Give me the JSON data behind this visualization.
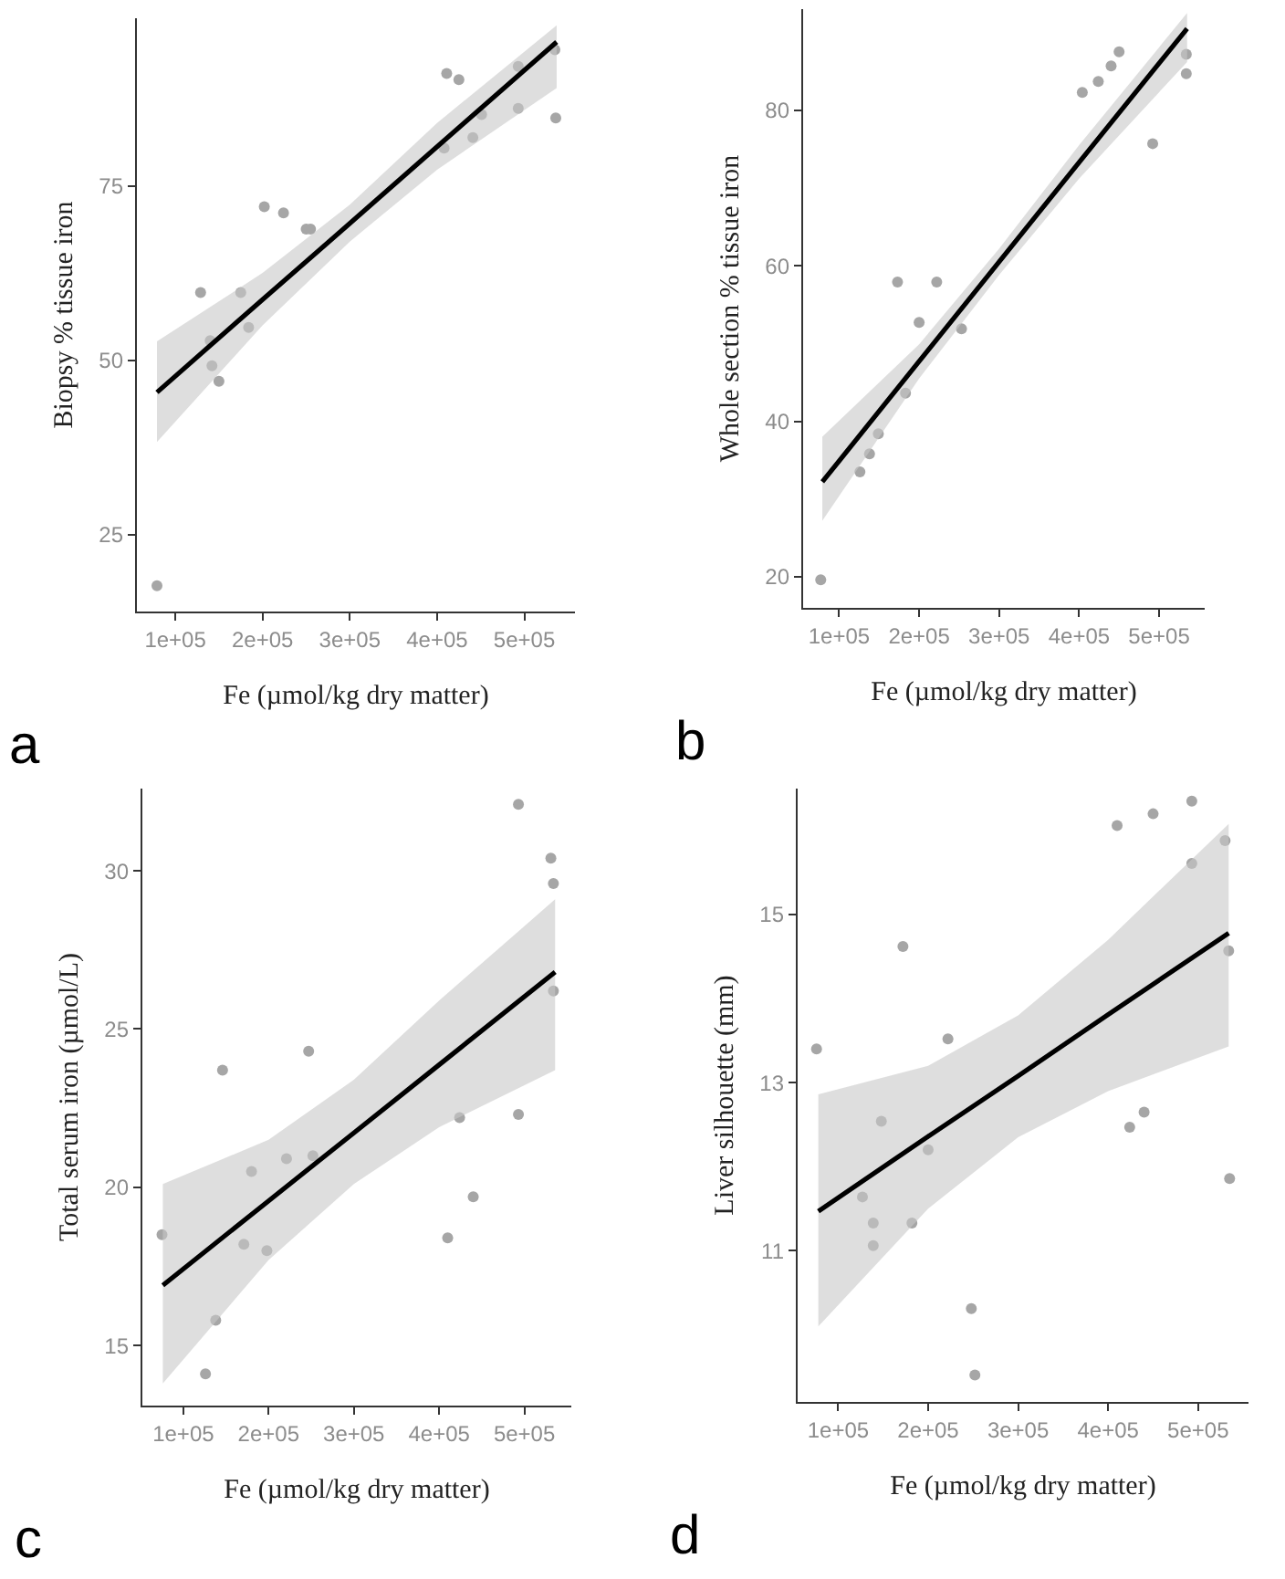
{
  "chart_data": [
    {
      "type": "scatter",
      "xlabel": "Fe (µmol/kg dry matter)",
      "ylabel": "Biopsy % tissue iron",
      "annotations": [
        "a"
      ],
      "xlim": [
        56000,
        558000
      ],
      "ylim": [
        14,
        99
      ],
      "xticks": [
        {
          "value": 100000,
          "label": "1e+05"
        },
        {
          "value": 200000,
          "label": "2e+05"
        },
        {
          "value": 300000,
          "label": "3e+05"
        },
        {
          "value": 400000,
          "label": "4e+05"
        },
        {
          "value": 500000,
          "label": "5e+05"
        }
      ],
      "yticks": [
        25,
        50,
        75
      ],
      "series": [
        {
          "marker": "circle",
          "color": "#a6a6a6",
          "x": [
            79000,
            129000,
            140000,
            142000,
            150000,
            175000,
            184000,
            202000,
            224000,
            250000,
            255000,
            408000,
            411000,
            425000,
            441000,
            451000,
            493000,
            493000,
            535000,
            536000
          ],
          "values": [
            17.7,
            59.7,
            52.8,
            49.2,
            47.0,
            59.7,
            54.7,
            72.0,
            71.1,
            68.8,
            68.8,
            80.4,
            91.1,
            90.2,
            81.9,
            85.2,
            92.1,
            86.1,
            94.5,
            84.7
          ]
        },
        {
          "type": "line",
          "color": "#000000",
          "x": [
            79000,
            200000,
            300000,
            400000,
            537000
          ],
          "values": [
            45.4,
            58.7,
            69.6,
            80.6,
            95.6
          ],
          "lower": [
            38.3,
            55.0,
            67.0,
            77.3,
            89.0
          ],
          "upper": [
            52.7,
            62.5,
            72.3,
            84.0,
            98.0
          ]
        }
      ]
    },
    {
      "type": "scatter",
      "xlabel": "Fe (µmol/kg dry matter)",
      "ylabel": "Whole section % tissue iron",
      "annotations": [
        "b"
      ],
      "xlim": [
        55000,
        557000
      ],
      "ylim": [
        16,
        93
      ],
      "xticks": [
        {
          "value": 100000,
          "label": "1e+05"
        },
        {
          "value": 200000,
          "label": "2e+05"
        },
        {
          "value": 300000,
          "label": "3e+05"
        },
        {
          "value": 400000,
          "label": "4e+05"
        },
        {
          "value": 500000,
          "label": "5e+05"
        }
      ],
      "yticks": [
        20,
        40,
        60,
        80
      ],
      "series": [
        {
          "marker": "circle",
          "color": "#a6a6a6",
          "x": [
            77000,
            126000,
            138000,
            149000,
            173000,
            183000,
            200000,
            222000,
            253000,
            404000,
            424000,
            440000,
            450000,
            492000,
            534000,
            534000
          ],
          "values": [
            19.6,
            33.5,
            35.8,
            38.4,
            57.9,
            43.6,
            52.7,
            57.9,
            51.9,
            82.3,
            83.7,
            85.7,
            87.5,
            75.7,
            87.2,
            84.7
          ]
        },
        {
          "type": "line",
          "color": "#000000",
          "x": [
            79000,
            200000,
            300000,
            400000,
            535000
          ],
          "values": [
            32.2,
            47.7,
            60.5,
            73.3,
            90.5
          ],
          "lower": [
            27.2,
            45.5,
            58.8,
            71.2,
            86.2
          ],
          "upper": [
            38.0,
            49.9,
            62.2,
            75.5,
            92.5
          ]
        }
      ]
    },
    {
      "type": "scatter",
      "xlabel": "Fe (µmol/kg dry matter)",
      "ylabel": "Total serum iron (µmol/L)",
      "annotations": [
        "c"
      ],
      "xlim": [
        52000,
        555000
      ],
      "ylim": [
        13.1,
        32.6
      ],
      "xticks": [
        {
          "value": 100000,
          "label": "1e+05"
        },
        {
          "value": 200000,
          "label": "2e+05"
        },
        {
          "value": 300000,
          "label": "3e+05"
        },
        {
          "value": 400000,
          "label": "4e+05"
        },
        {
          "value": 500000,
          "label": "5e+05"
        }
      ],
      "yticks": [
        15,
        20,
        25,
        30
      ],
      "series": [
        {
          "marker": "circle",
          "color": "#a6a6a6",
          "x": [
            75000,
            126000,
            138000,
            146000,
            171000,
            180000,
            198000,
            221000,
            247000,
            252000,
            410000,
            424000,
            440000,
            493000,
            493000,
            531000,
            534000,
            534000
          ],
          "values": [
            18.5,
            14.1,
            15.8,
            23.7,
            18.2,
            20.5,
            18.0,
            20.9,
            24.3,
            21.0,
            18.4,
            22.2,
            19.7,
            32.1,
            22.3,
            30.4,
            29.6,
            26.2
          ]
        },
        {
          "type": "line",
          "color": "#000000",
          "x": [
            76000,
            200000,
            300000,
            400000,
            536000
          ],
          "values": [
            16.9,
            19.57,
            21.72,
            23.87,
            26.8
          ],
          "lower": [
            13.8,
            17.7,
            20.1,
            21.9,
            23.7
          ],
          "upper": [
            20.1,
            21.5,
            23.4,
            25.9,
            29.1
          ]
        }
      ]
    },
    {
      "type": "scatter",
      "xlabel": "Fe (µmol/kg dry matter)",
      "ylabel": "Liver silhouette (mm)",
      "annotations": [
        "d"
      ],
      "xlim": [
        55000,
        556000
      ],
      "ylim": [
        9.2,
        16.5
      ],
      "xticks": [
        {
          "value": 100000,
          "label": "1e+05"
        },
        {
          "value": 200000,
          "label": "2e+05"
        },
        {
          "value": 300000,
          "label": "3e+05"
        },
        {
          "value": 400000,
          "label": "4e+05"
        },
        {
          "value": 500000,
          "label": "5e+05"
        }
      ],
      "yticks": [
        11,
        13,
        15
      ],
      "series": [
        {
          "marker": "circle",
          "color": "#a6a6a6",
          "x": [
            76000,
            127000,
            139000,
            139000,
            148000,
            172000,
            182000,
            200000,
            222000,
            248000,
            252000,
            410000,
            424000,
            440000,
            450000,
            493000,
            493000,
            530000,
            534000,
            535000
          ],
          "values": [
            13.4,
            11.64,
            11.33,
            11.06,
            12.54,
            14.62,
            11.33,
            12.2,
            13.52,
            10.31,
            9.52,
            16.06,
            12.47,
            12.65,
            16.2,
            16.35,
            15.61,
            15.88,
            14.57,
            11.86
          ]
        },
        {
          "type": "line",
          "color": "#000000",
          "x": [
            78000,
            200000,
            300000,
            400000,
            534000
          ],
          "values": [
            11.47,
            12.36,
            13.08,
            13.81,
            14.78
          ],
          "lower": [
            10.1,
            11.5,
            12.35,
            12.9,
            13.43
          ],
          "upper": [
            12.86,
            13.2,
            13.8,
            14.7,
            16.08
          ]
        }
      ]
    }
  ]
}
